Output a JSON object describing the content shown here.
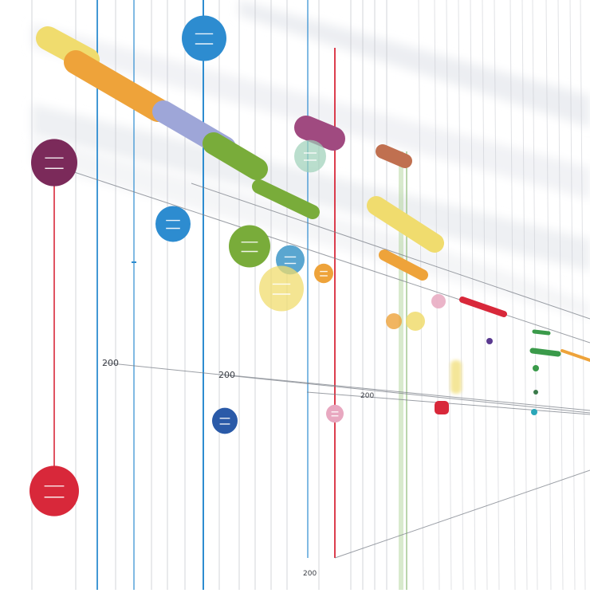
{
  "axis_labels": [
    "200",
    "200",
    "200",
    "200"
  ],
  "colors": {
    "yellow": "#f0dc6e",
    "orange": "#eea33a",
    "lavender": "#9ea6d8",
    "green": "#79ac3a",
    "magenta": "#a04a80",
    "plum": "#7b2a5a",
    "blue": "#2d8cd0",
    "navy": "#2a5aa8",
    "red": "#d8283a",
    "sky": "#5aa6d0",
    "pink": "#e8a8c0",
    "brown": "#c07050",
    "mint": "#9cd0b8",
    "teal": "#2aa6b8"
  },
  "timeline": {
    "bars": [
      {
        "name": "bar-yellow",
        "color": "yellow"
      },
      {
        "name": "bar-orange",
        "color": "orange"
      },
      {
        "name": "bar-lavender",
        "color": "lavender"
      },
      {
        "name": "bar-green",
        "color": "green"
      },
      {
        "name": "bar-green-lower",
        "color": "green"
      },
      {
        "name": "bar-magenta",
        "color": "magenta"
      },
      {
        "name": "bar-brown",
        "color": "brown"
      },
      {
        "name": "bar-yellow-right",
        "color": "yellow"
      },
      {
        "name": "bar-orange-right",
        "color": "orange"
      },
      {
        "name": "bar-red-right",
        "color": "red"
      }
    ],
    "markers": [
      {
        "name": "marker-plum",
        "color": "plum"
      },
      {
        "name": "marker-blue-top",
        "color": "blue"
      },
      {
        "name": "marker-blue-mid",
        "color": "blue"
      },
      {
        "name": "marker-green",
        "color": "green"
      },
      {
        "name": "marker-sky",
        "color": "sky"
      },
      {
        "name": "marker-yellow",
        "color": "yellow"
      },
      {
        "name": "marker-orange",
        "color": "orange"
      },
      {
        "name": "marker-navy",
        "color": "navy"
      },
      {
        "name": "marker-pink",
        "color": "pink"
      },
      {
        "name": "marker-red-bottom",
        "color": "red"
      },
      {
        "name": "marker-mint",
        "color": "mint"
      }
    ]
  }
}
